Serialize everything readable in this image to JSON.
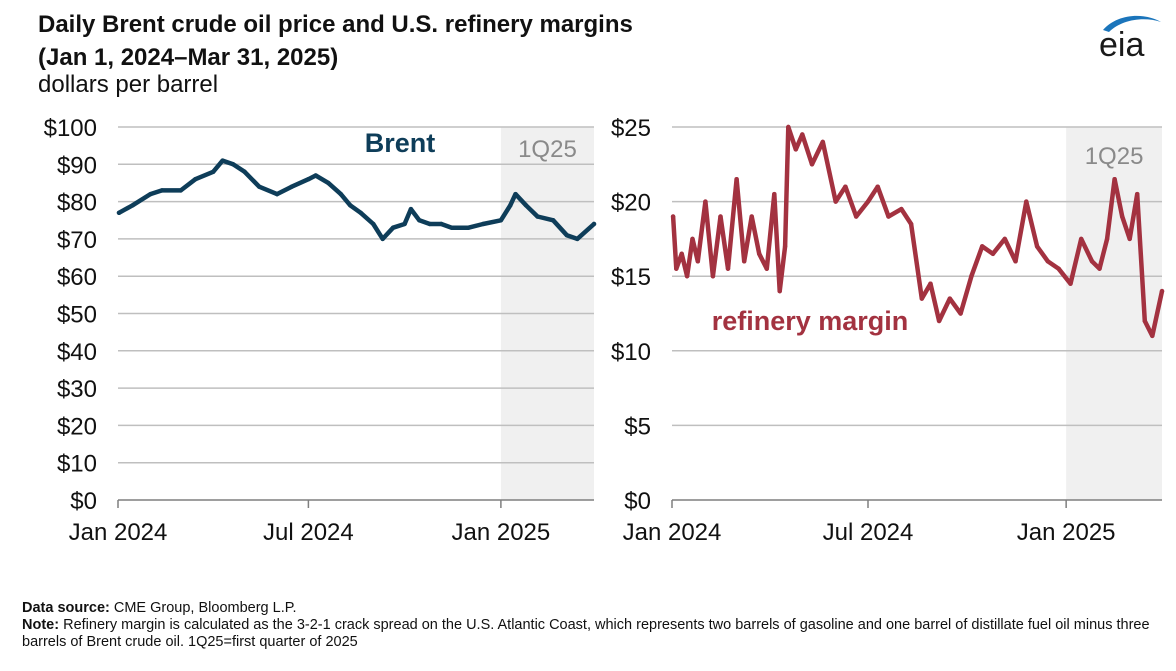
{
  "title_line1": "Daily Brent crude oil price and U.S. refinery margins",
  "title_line2": "(Jan 1, 2024–Mar 31, 2025)",
  "units": "dollars per barrel",
  "logo_text": "eia",
  "footer": {
    "source_label": "Data source:",
    "source_text": "CME Group, Bloomberg L.P.",
    "note_label": "Note:",
    "note_text": "Refinery margin is calculated as the 3-2-1 crack spread on the U.S. Atlantic Coast, which represents two barrels of gasoline and one barrel of distillate fuel oil minus three barrels of Brent crude oil. 1Q25=first quarter of 2025"
  },
  "colors": {
    "brent": "#0e3d59",
    "margin": "#a33240",
    "shade": "#f0f0f0",
    "grid": "#bfbfbf",
    "highlight_label": "#8a8a8a"
  },
  "chart_data": [
    {
      "type": "line",
      "series": [
        {
          "name": "Brent",
          "color": "#0e3d59",
          "x": [
            "2024-01-02",
            "2024-01-15",
            "2024-02-01",
            "2024-02-12",
            "2024-03-01",
            "2024-03-15",
            "2024-04-01",
            "2024-04-10",
            "2024-04-20",
            "2024-05-01",
            "2024-05-15",
            "2024-06-01",
            "2024-06-15",
            "2024-07-01",
            "2024-07-08",
            "2024-07-20",
            "2024-08-01",
            "2024-08-10",
            "2024-08-20",
            "2024-09-01",
            "2024-09-10",
            "2024-09-20",
            "2024-10-01",
            "2024-10-07",
            "2024-10-15",
            "2024-10-25",
            "2024-11-05",
            "2024-11-15",
            "2024-12-01",
            "2024-12-15",
            "2025-01-01",
            "2025-01-10",
            "2025-01-15",
            "2025-01-25",
            "2025-02-05",
            "2025-02-20",
            "2025-03-05",
            "2025-03-15",
            "2025-03-31"
          ],
          "values": [
            77,
            79,
            82,
            83,
            83,
            86,
            88,
            91,
            90,
            88,
            84,
            82,
            84,
            86,
            87,
            85,
            82,
            79,
            77,
            74,
            70,
            73,
            74,
            78,
            75,
            74,
            74,
            73,
            73,
            74,
            75,
            79,
            82,
            79,
            76,
            75,
            71,
            70,
            74
          ]
        }
      ],
      "xlim": [
        "2024-01-01",
        "2025-03-31"
      ],
      "ylim": [
        0,
        100
      ],
      "ticks": {
        "y": [
          "$0",
          "$10",
          "$20",
          "$30",
          "$40",
          "$50",
          "$60",
          "$70",
          "$80",
          "$90",
          "$100"
        ],
        "x": [
          "Jan 2024",
          "Jul 2024",
          "Jan 2025"
        ]
      },
      "label": "Brent",
      "highlight": {
        "label": "1Q25",
        "from": "2025-01-01",
        "to": "2025-03-31"
      },
      "grid": true
    },
    {
      "type": "line",
      "series": [
        {
          "name": "refinery margin",
          "color": "#a33240",
          "x": [
            "2024-01-02",
            "2024-01-05",
            "2024-01-10",
            "2024-01-15",
            "2024-01-20",
            "2024-01-25",
            "2024-02-01",
            "2024-02-08",
            "2024-02-15",
            "2024-02-22",
            "2024-03-01",
            "2024-03-08",
            "2024-03-15",
            "2024-03-22",
            "2024-03-29",
            "2024-04-05",
            "2024-04-10",
            "2024-04-15",
            "2024-04-18",
            "2024-04-25",
            "2024-05-01",
            "2024-05-10",
            "2024-05-20",
            "2024-06-01",
            "2024-06-10",
            "2024-06-20",
            "2024-07-01",
            "2024-07-10",
            "2024-07-20",
            "2024-08-01",
            "2024-08-10",
            "2024-08-20",
            "2024-08-28",
            "2024-09-05",
            "2024-09-15",
            "2024-09-25",
            "2024-10-05",
            "2024-10-15",
            "2024-10-25",
            "2024-11-05",
            "2024-11-15",
            "2024-11-25",
            "2024-12-05",
            "2024-12-15",
            "2024-12-25",
            "2025-01-05",
            "2025-01-15",
            "2025-01-25",
            "2025-02-01",
            "2025-02-08",
            "2025-02-15",
            "2025-02-22",
            "2025-03-01",
            "2025-03-08",
            "2025-03-15",
            "2025-03-22",
            "2025-03-31"
          ],
          "values": [
            19,
            15.5,
            16.5,
            15,
            17.5,
            16,
            20,
            15,
            19,
            15.5,
            21.5,
            16,
            19,
            16.5,
            15.5,
            20.5,
            14,
            17,
            25,
            23.5,
            24.5,
            22.5,
            24,
            20,
            21,
            19,
            20,
            21,
            19,
            19.5,
            18.5,
            13.5,
            14.5,
            12,
            13.5,
            12.5,
            15,
            17,
            16.5,
            17.5,
            16,
            20,
            17,
            16,
            15.5,
            14.5,
            17.5,
            16,
            15.5,
            17.5,
            21.5,
            19,
            17.5,
            20.5,
            12,
            11,
            14
          ]
        }
      ],
      "xlim": [
        "2024-01-01",
        "2025-03-31"
      ],
      "ylim": [
        0,
        25
      ],
      "ticks": {
        "y": [
          "$0",
          "$5",
          "$10",
          "$15",
          "$20",
          "$25"
        ],
        "x": [
          "Jan 2024",
          "Jul 2024",
          "Jan 2025"
        ]
      },
      "label": "refinery margin",
      "highlight": {
        "label": "1Q25",
        "from": "2025-01-01",
        "to": "2025-03-31"
      },
      "grid": true
    }
  ]
}
